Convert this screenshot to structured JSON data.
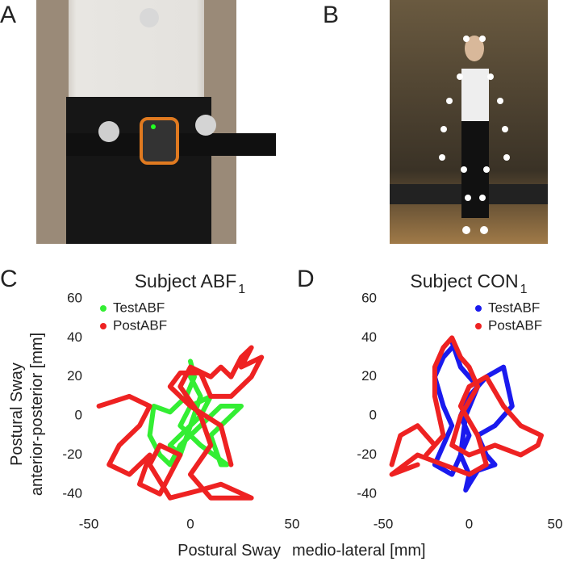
{
  "panels": [
    "A",
    "B"
  ],
  "axis_labels": {
    "y": [
      "Postural Sway",
      "anterior-posterior [mm]"
    ],
    "x": [
      "Postural Sway",
      "medio-lateral [mm]"
    ]
  },
  "chart_data": [
    {
      "type": "line",
      "panel": "C",
      "title": "Subject ABF",
      "title_subscript": "1",
      "xlim": [
        -50,
        50
      ],
      "ylim": [
        -50,
        60
      ],
      "xticks": [
        -50,
        0,
        50
      ],
      "yticks": [
        -40,
        -20,
        0,
        20,
        40,
        60
      ],
      "legend": "upper left",
      "grid": false,
      "series": [
        {
          "name": "TestABF",
          "color": "#33ee33",
          "x": [
            0,
            2,
            -2,
            -10,
            -18,
            -20,
            -15,
            -10,
            -5,
            5,
            15,
            25,
            15,
            10,
            15,
            18,
            5,
            -5,
            0,
            10,
            5,
            -10,
            -5,
            5,
            0
          ],
          "values": [
            28,
            20,
            10,
            2,
            5,
            -10,
            -20,
            -25,
            -15,
            -5,
            5,
            5,
            -5,
            -10,
            -25,
            -25,
            -15,
            -5,
            5,
            10,
            0,
            -15,
            -20,
            10,
            20
          ]
        },
        {
          "name": "PostABF",
          "color": "#ee2222",
          "x": [
            -45,
            -30,
            -20,
            -25,
            -35,
            -40,
            -30,
            -20,
            -25,
            -15,
            -10,
            -5,
            -15,
            -20,
            -10,
            5,
            15,
            30,
            10,
            0,
            10,
            5,
            -5,
            0,
            10,
            15,
            20,
            25,
            30,
            25,
            35,
            30,
            20,
            10,
            5,
            -5,
            -10,
            0,
            15,
            20
          ],
          "values": [
            5,
            10,
            5,
            -5,
            -15,
            -25,
            -30,
            -20,
            -35,
            -40,
            -30,
            -20,
            -15,
            -25,
            -42,
            -38,
            -35,
            -42,
            -42,
            -30,
            -15,
            0,
            15,
            25,
            20,
            25,
            20,
            30,
            35,
            25,
            30,
            20,
            10,
            10,
            22,
            22,
            15,
            5,
            -5,
            -25
          ]
        }
      ]
    },
    {
      "type": "line",
      "panel": "D",
      "title": "Subject CON",
      "title_subscript": "1",
      "xlim": [
        -50,
        50
      ],
      "ylim": [
        -50,
        60
      ],
      "xticks": [
        -50,
        0,
        50
      ],
      "yticks": [
        -40,
        -20,
        0,
        20,
        40,
        60
      ],
      "legend": "upper right",
      "grid": false,
      "series": [
        {
          "name": "TestABF",
          "color": "#1a1aee",
          "x": [
            -10,
            -15,
            -20,
            -15,
            -10,
            -15,
            -20,
            -10,
            -5,
            0,
            -5,
            0,
            10,
            20,
            25,
            15,
            5,
            10,
            15,
            5,
            0,
            -2,
            0,
            -5,
            -2,
            5,
            -5,
            -10
          ],
          "values": [
            35,
            30,
            20,
            5,
            -5,
            -15,
            -25,
            -30,
            -20,
            -10,
            0,
            10,
            20,
            25,
            5,
            -5,
            -10,
            -20,
            -25,
            -28,
            -35,
            -38,
            -30,
            -20,
            0,
            15,
            25,
            38
          ]
        },
        {
          "name": "PostABF",
          "color": "#ee2222",
          "x": [
            -45,
            -40,
            -30,
            -20,
            -25,
            -15,
            -20,
            -20,
            -15,
            -10,
            -5,
            0,
            5,
            -5,
            -10,
            0,
            15,
            30,
            40,
            42,
            30,
            20,
            10,
            0,
            -5,
            5,
            10,
            0,
            -15,
            -30,
            -45,
            -30
          ],
          "values": [
            -25,
            -10,
            -5,
            -15,
            -20,
            -10,
            10,
            25,
            35,
            40,
            30,
            25,
            15,
            0,
            -15,
            -20,
            -15,
            -20,
            -15,
            -10,
            -5,
            5,
            20,
            15,
            5,
            -10,
            -25,
            -30,
            -25,
            -20,
            -30,
            -25
          ]
        }
      ]
    }
  ]
}
